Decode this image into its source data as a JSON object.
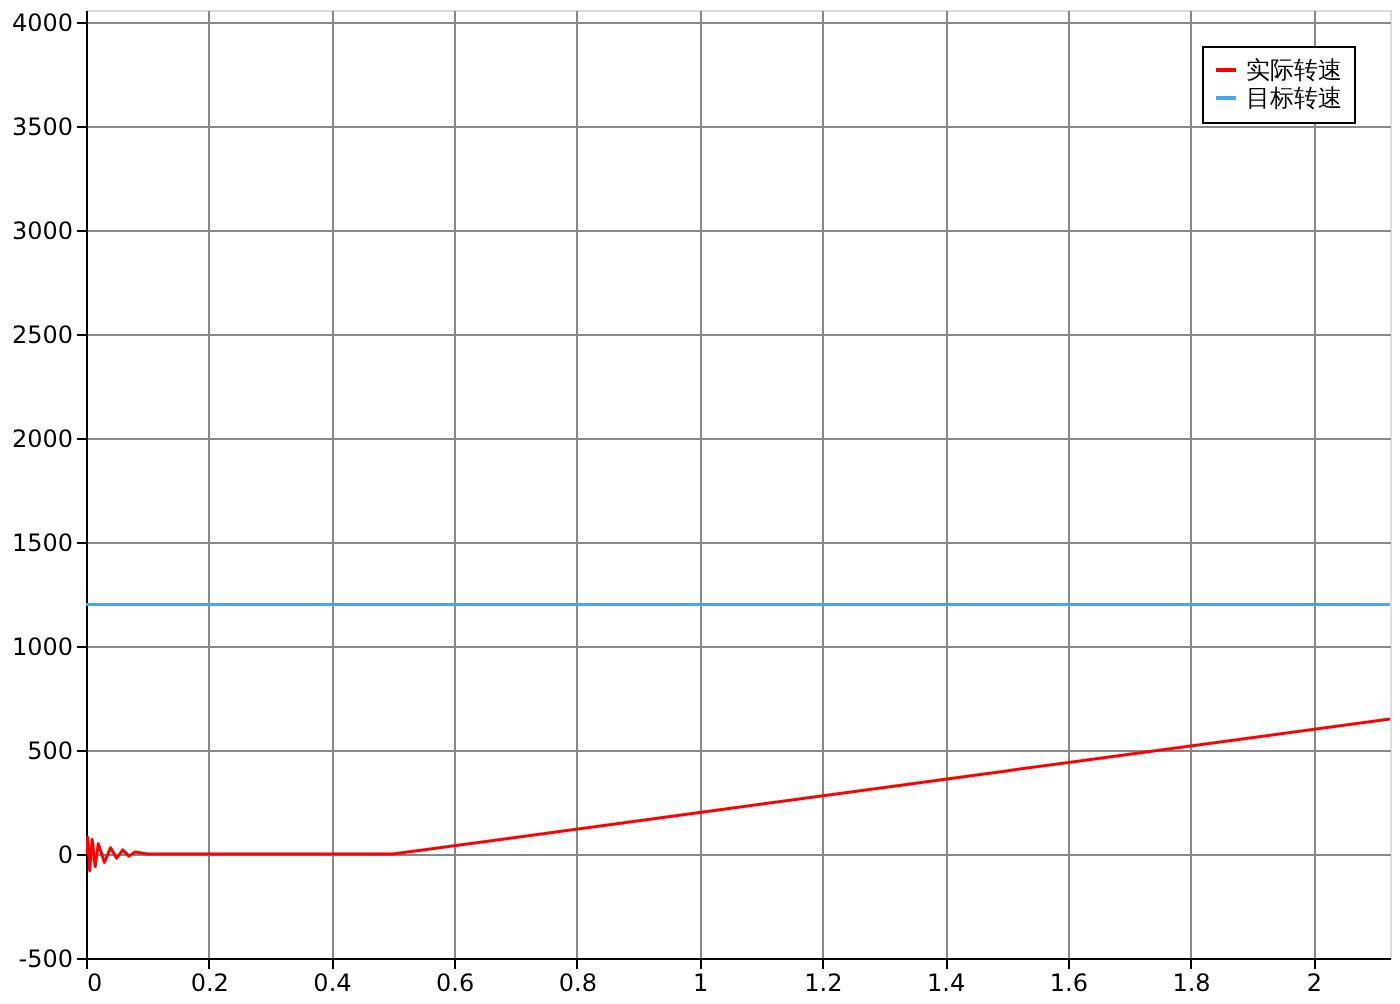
{
  "chart_data": {
    "type": "line",
    "series": [
      {
        "name": "实际转速",
        "color": "#ff0000",
        "x": [
          0,
          0.003,
          0.006,
          0.01,
          0.015,
          0.02,
          0.03,
          0.04,
          0.05,
          0.06,
          0.07,
          0.08,
          0.1,
          0.5,
          1.0,
          1.5,
          2.125
        ],
        "values": [
          0,
          80,
          -80,
          70,
          -60,
          50,
          -40,
          30,
          -20,
          20,
          -10,
          10,
          0,
          0,
          200,
          400,
          650
        ]
      },
      {
        "name": "目标转速",
        "color": "#4da6e8",
        "x": [
          0,
          2.125
        ],
        "values": [
          1200,
          1200
        ]
      }
    ],
    "xlim": [
      0,
      2.125
    ],
    "xticks": [
      0,
      0.2,
      0.4,
      0.6,
      0.8,
      1,
      1.2,
      1.4,
      1.6,
      1.8,
      2
    ],
    "ylim": [
      -500,
      4060
    ],
    "yticks": [
      -500,
      0,
      500,
      1000,
      1500,
      2000,
      2500,
      3000,
      3500,
      4000
    ],
    "grid": true,
    "legend": "top right",
    "marker": "none",
    "line_style": "solid"
  }
}
